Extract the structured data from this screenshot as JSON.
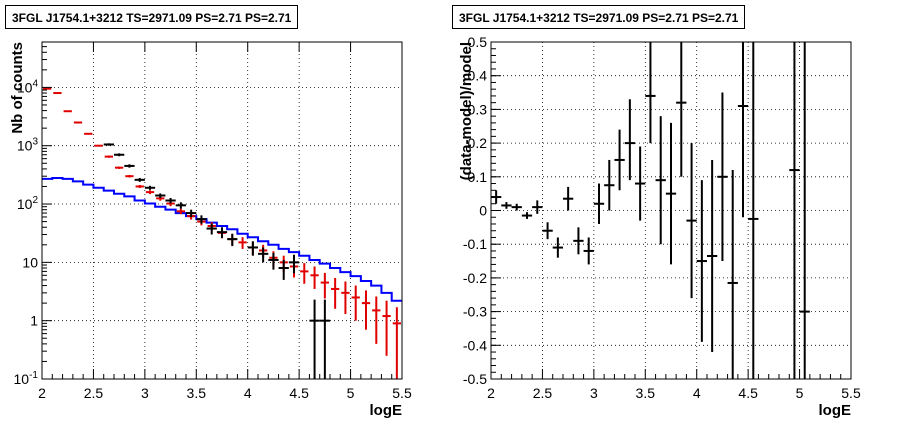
{
  "chart_data": [
    {
      "type": "line",
      "title": "3FGL J1754.1+3212 TS=2971.09 PS=2.71 PS=2.71",
      "xlabel": "logE",
      "ylabel": "Nb of counts",
      "xlim": [
        2,
        5.5
      ],
      "ylim": [
        0.1,
        60000
      ],
      "yscale": "log",
      "grid": true,
      "x_ticks": [
        "2",
        "2.5",
        "3",
        "3.5",
        "4",
        "4.5",
        "5",
        "5.5"
      ],
      "y_ticks": [
        {
          "value": 0.1,
          "label": "10",
          "exp": "-1"
        },
        {
          "value": 1,
          "label": "1",
          "exp": ""
        },
        {
          "value": 10,
          "label": "10",
          "exp": ""
        },
        {
          "value": 100,
          "label": "10",
          "exp": "2"
        },
        {
          "value": 1000,
          "label": "10",
          "exp": "3"
        },
        {
          "value": 10000,
          "label": "10",
          "exp": "4"
        }
      ],
      "bin_edges": [
        2.0,
        2.1,
        2.2,
        2.3,
        2.4,
        2.5,
        2.6,
        2.7,
        2.8,
        2.9,
        3.0,
        3.1,
        3.2,
        3.3,
        3.4,
        3.5,
        3.6,
        3.7,
        3.8,
        3.9,
        4.0,
        4.1,
        4.2,
        4.3,
        4.4,
        4.5,
        4.6,
        4.7,
        4.8,
        4.9,
        5.0,
        5.1,
        5.2,
        5.3,
        5.4,
        5.5
      ],
      "series": [
        {
          "name": "",
          "style": "step",
          "color": "#0000ff",
          "values": [
            270,
            280,
            270,
            245,
            215,
            190,
            170,
            150,
            135,
            115,
            102,
            90,
            80,
            70,
            62,
            55,
            48,
            42,
            37,
            31,
            27,
            23,
            20,
            17,
            15,
            13,
            11,
            9.5,
            8,
            6.8,
            5.8,
            4.8,
            4,
            3,
            2.2
          ]
        },
        {
          "name": "",
          "style": "errorbar",
          "color": "#e00000",
          "values": [
            9500,
            8000,
            3900,
            2500,
            1600,
            1000,
            650,
            420,
            300,
            200,
            160,
            125,
            102,
            75,
            62,
            50,
            42,
            32,
            25,
            22,
            18,
            16,
            12,
            10,
            8.5,
            7,
            6,
            4.5,
            3.5,
            3,
            2.5,
            2,
            1.5,
            1.2,
            0.9
          ],
          "y_low": [
            9300,
            7800,
            3800,
            2400,
            1550,
            970,
            620,
            400,
            285,
            188,
            148,
            114,
            92,
            67,
            54,
            43,
            35,
            26,
            20,
            17,
            13.5,
            12,
            8.5,
            7,
            5.5,
            4.3,
            3.5,
            2.4,
            1.6,
            1.3,
            1.0,
            0.7,
            0.4,
            0.25,
            0.1
          ],
          "y_high": [
            9700,
            8200,
            4000,
            2600,
            1650,
            1030,
            680,
            440,
            315,
            212,
            172,
            136,
            112,
            83,
            70,
            57,
            49,
            38,
            30,
            27,
            22.5,
            20,
            15.5,
            13,
            11.5,
            9.7,
            8.5,
            6.6,
            5.4,
            4.7,
            4.0,
            3.3,
            2.6,
            2.2,
            1.7
          ]
        },
        {
          "name": "",
          "style": "errorbar",
          "color": "#000000",
          "x": [
            2.65,
            2.75,
            2.85,
            2.95,
            3.05,
            3.15,
            3.25,
            3.35,
            3.45,
            3.55,
            3.65,
            3.75,
            3.85,
            4.05,
            4.15,
            4.25,
            4.35,
            4.45,
            4.65,
            4.75
          ],
          "values": [
            1050,
            700,
            450,
            260,
            190,
            140,
            115,
            95,
            70,
            55,
            38,
            33,
            25,
            18,
            14,
            11,
            8,
            10,
            1,
            1
          ],
          "y_low": [
            1000,
            660,
            420,
            240,
            175,
            128,
            103,
            83,
            60,
            46,
            30,
            26,
            19,
            13,
            10,
            7.5,
            5,
            6.5,
            0.1,
            0.1
          ],
          "y_high": [
            1100,
            740,
            480,
            280,
            205,
            152,
            127,
            107,
            80,
            64,
            46,
            40,
            31,
            23,
            18,
            14.5,
            11,
            13.5,
            2.3,
            2.3
          ]
        }
      ]
    },
    {
      "type": "scatter",
      "title": "3FGL J1754.1+3212 TS=2971.09 PS=2.71 PS=2.71",
      "xlabel": "logE",
      "ylabel": "(data-model)/model",
      "xlim": [
        2,
        5.5
      ],
      "ylim": [
        -0.5,
        0.5
      ],
      "grid": true,
      "x_ticks": [
        "2",
        "2.5",
        "3",
        "3.5",
        "4",
        "4.5",
        "5",
        "5.5"
      ],
      "y_ticks": [
        "-0.5",
        "-0.4",
        "-0.3",
        "-0.2",
        "-0.1",
        "0",
        "0.1",
        "0.2",
        "0.3",
        "0.4",
        "0.5"
      ],
      "series": [
        {
          "name": "",
          "color": "#000000",
          "x": [
            2.05,
            2.15,
            2.25,
            2.35,
            2.45,
            2.55,
            2.65,
            2.75,
            2.85,
            2.95,
            3.05,
            3.15,
            3.25,
            3.35,
            3.45,
            3.55,
            3.65,
            3.75,
            3.85,
            3.95,
            4.05,
            4.15,
            4.25,
            4.35,
            4.45,
            4.55,
            4.95,
            5.05
          ],
          "values": [
            0.04,
            0.015,
            0.01,
            -0.015,
            0.01,
            -0.06,
            -0.11,
            0.035,
            -0.09,
            -0.12,
            0.02,
            0.075,
            0.15,
            0.2,
            0.08,
            0.34,
            0.09,
            0.05,
            0.32,
            -0.03,
            -0.15,
            -0.135,
            0.1,
            -0.215,
            0.31,
            -0.025,
            0.12,
            -0.3
          ],
          "y_low": [
            0.02,
            0.005,
            0.0,
            -0.025,
            -0.01,
            -0.085,
            -0.14,
            0.0,
            -0.13,
            -0.16,
            -0.04,
            0.0,
            0.06,
            0.09,
            -0.03,
            0.2,
            -0.1,
            -0.16,
            0.1,
            -0.26,
            -0.39,
            -0.42,
            -0.15,
            -0.55,
            -0.02,
            -0.55,
            -0.55,
            -0.55
          ],
          "y_high": [
            0.06,
            0.025,
            0.02,
            -0.005,
            0.03,
            -0.035,
            -0.08,
            0.07,
            -0.05,
            -0.08,
            0.08,
            0.15,
            0.24,
            0.33,
            0.19,
            0.55,
            0.28,
            0.26,
            0.55,
            0.2,
            0.09,
            0.15,
            0.35,
            0.12,
            0.55,
            0.55,
            0.55,
            0.55
          ]
        }
      ]
    }
  ]
}
